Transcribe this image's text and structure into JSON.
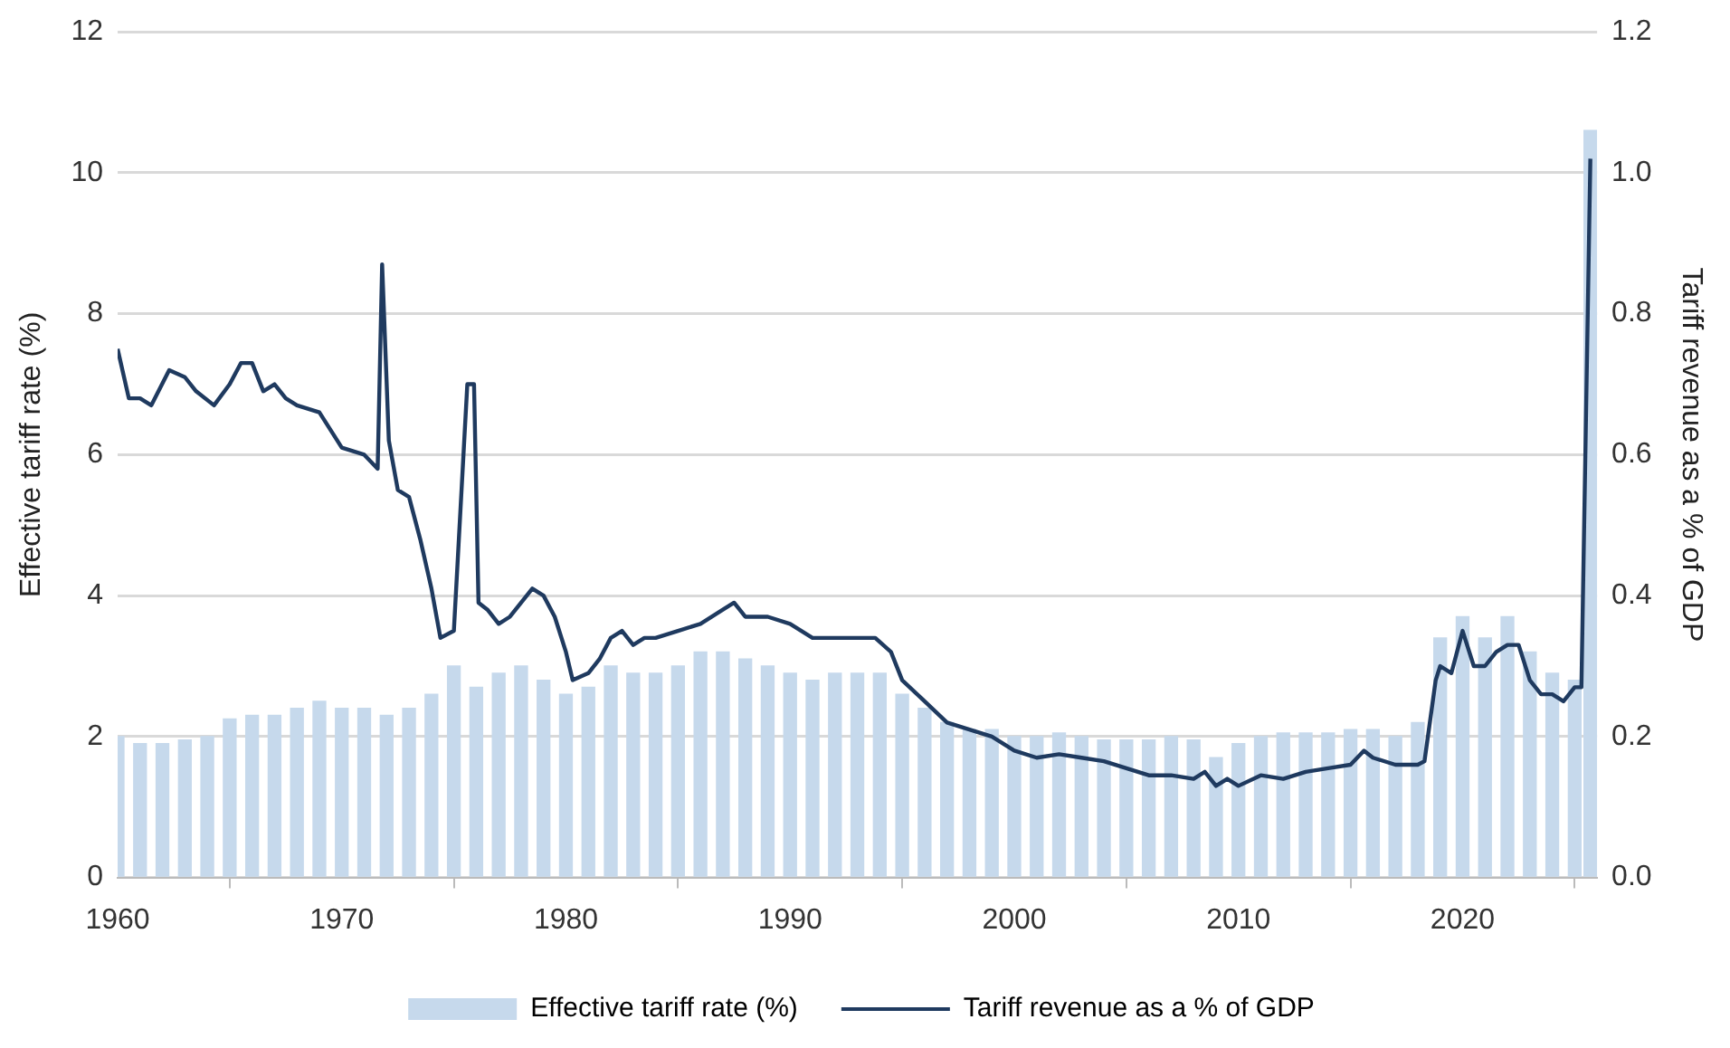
{
  "chart_data": {
    "type": "bar",
    "xlabel": null,
    "ylabel": "Effective tariff rate (%)",
    "y2label": "Tariff revenue as a % of GDP",
    "xlim": [
      1960,
      2026
    ],
    "xticks": [
      1960,
      1970,
      1980,
      1990,
      2000,
      2010,
      2020
    ],
    "ylim": [
      0,
      12
    ],
    "yticks": [
      0,
      2,
      4,
      6,
      8,
      10,
      12
    ],
    "y2lim": [
      0,
      1.2
    ],
    "y2ticks": [
      {
        "value": 0,
        "label": "0.0"
      },
      {
        "value": 0.2,
        "label": "0.2"
      },
      {
        "value": 0.4,
        "label": "0.4"
      },
      {
        "value": 0.6,
        "label": "0.6"
      },
      {
        "value": 0.8,
        "label": "0.8"
      },
      {
        "value": 1,
        "label": "1.0"
      },
      {
        "value": 1.2,
        "label": "1.2"
      }
    ],
    "grid": "y",
    "legend": "bottom",
    "series": [
      {
        "name": "Effective tariff rate (%)",
        "color": "#c6d9ec",
        "x": [
          1960,
          1961,
          1962,
          1963,
          1964,
          1965,
          1966,
          1967,
          1968,
          1969,
          1970,
          1971,
          1972,
          1973,
          1974,
          1975,
          1976,
          1977,
          1978,
          1979,
          1980,
          1981,
          1982,
          1983,
          1984,
          1985,
          1986,
          1987,
          1988,
          1989,
          1990,
          1991,
          1992,
          1993,
          1994,
          1995,
          1996,
          1997,
          1998,
          1999,
          2000,
          2001,
          2002,
          2003,
          2004,
          2005,
          2006,
          2007,
          2008,
          2009,
          2010,
          2011,
          2012,
          2013,
          2014,
          2015,
          2016,
          2017,
          2018,
          2019,
          2020,
          2021,
          2022,
          2023,
          2024,
          2025,
          2025.7
        ],
        "values": [
          2.0,
          1.9,
          1.9,
          1.95,
          2.0,
          2.25,
          2.3,
          2.3,
          2.4,
          2.5,
          2.4,
          2.4,
          2.3,
          2.4,
          2.6,
          3.0,
          2.7,
          2.9,
          3.0,
          2.8,
          2.6,
          2.7,
          3.0,
          2.9,
          2.9,
          3.0,
          3.2,
          3.2,
          3.1,
          3.0,
          2.9,
          2.8,
          2.9,
          2.9,
          2.9,
          2.6,
          2.4,
          2.2,
          2.1,
          2.1,
          2.0,
          2.0,
          2.05,
          2.0,
          1.95,
          1.95,
          1.95,
          2.0,
          1.95,
          1.7,
          1.9,
          2.0,
          2.05,
          2.05,
          2.05,
          2.1,
          2.1,
          2.0,
          2.2,
          3.4,
          3.7,
          3.4,
          3.7,
          3.2,
          2.9,
          2.8,
          10.6
        ]
      },
      {
        "name": "Tariff revenue as a % of GDP",
        "type": "line",
        "axis": "y2",
        "color": "#1f3a5f",
        "x": [
          1960,
          1960.5,
          1961,
          1961.5,
          1962.3,
          1963,
          1963.5,
          1964.3,
          1965,
          1965.5,
          1966,
          1966.5,
          1967,
          1967.5,
          1968,
          1969,
          1970,
          1971,
          1971.6,
          1971.8,
          1972.1,
          1972.5,
          1973,
          1973.5,
          1974,
          1974.4,
          1975,
          1975.6,
          1975.9,
          1976.1,
          1976.5,
          1977,
          1977.5,
          1978,
          1978.5,
          1979,
          1979.5,
          1980,
          1980.3,
          1981,
          1981.5,
          1982,
          1982.5,
          1983,
          1983.5,
          1984,
          1985,
          1986,
          1987,
          1987.5,
          1988,
          1989,
          1990,
          1991,
          1992,
          1993,
          1993.8,
          1994.5,
          1995,
          1996,
          1997,
          1998,
          1999,
          2000,
          2001,
          2002,
          2003,
          2004,
          2005,
          2006,
          2007,
          2008,
          2008.5,
          2009,
          2009.5,
          2010,
          2011,
          2012,
          2013,
          2014,
          2015,
          2015.6,
          2016,
          2017,
          2018,
          2018.3,
          2018.8,
          2019,
          2019.5,
          2020,
          2020.5,
          2021,
          2021.5,
          2022,
          2022.5,
          2023,
          2023.5,
          2024,
          2024.5,
          2025,
          2025.3,
          2025.7
        ],
        "values": [
          0.75,
          0.68,
          0.68,
          0.67,
          0.72,
          0.71,
          0.69,
          0.67,
          0.7,
          0.73,
          0.73,
          0.69,
          0.7,
          0.68,
          0.67,
          0.66,
          0.61,
          0.6,
          0.58,
          0.87,
          0.62,
          0.55,
          0.54,
          0.48,
          0.41,
          0.34,
          0.35,
          0.7,
          0.7,
          0.39,
          0.38,
          0.36,
          0.37,
          0.39,
          0.41,
          0.4,
          0.37,
          0.32,
          0.28,
          0.29,
          0.31,
          0.34,
          0.35,
          0.33,
          0.34,
          0.34,
          0.35,
          0.36,
          0.38,
          0.39,
          0.37,
          0.37,
          0.36,
          0.34,
          0.34,
          0.34,
          0.34,
          0.32,
          0.28,
          0.25,
          0.22,
          0.21,
          0.2,
          0.18,
          0.17,
          0.175,
          0.17,
          0.165,
          0.155,
          0.145,
          0.145,
          0.14,
          0.15,
          0.13,
          0.14,
          0.13,
          0.145,
          0.14,
          0.15,
          0.155,
          0.16,
          0.18,
          0.17,
          0.16,
          0.16,
          0.165,
          0.28,
          0.3,
          0.29,
          0.35,
          0.3,
          0.3,
          0.32,
          0.33,
          0.33,
          0.28,
          0.26,
          0.26,
          0.25,
          0.27,
          0.27,
          1.02
        ]
      }
    ]
  }
}
